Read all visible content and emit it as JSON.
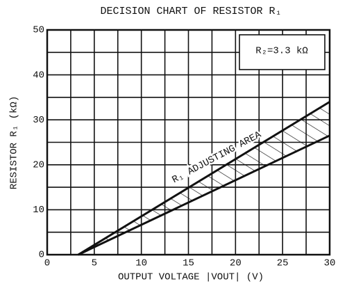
{
  "chart_data": {
    "type": "line",
    "title": "DECISION CHART OF RESISTOR R₁",
    "x_label": "OUTPUT VOLTAGE |VOUT| (V)",
    "y_label": "RESISTOR R₁ (kΩ)",
    "annotations": [
      "R₂=3.3 kΩ",
      "R₁ ADJUSTING AREA"
    ],
    "x": [
      3.3,
      30
    ],
    "series": [
      {
        "color": "#111111",
        "values": [
          0,
          34
        ]
      },
      {
        "color": "#111111",
        "values": [
          0,
          26.5
        ]
      }
    ],
    "xlim": [
      0,
      30
    ],
    "ylim": [
      0,
      50
    ],
    "xticks": [
      0,
      5,
      10,
      15,
      20,
      25,
      30
    ],
    "yticks": [
      0,
      10,
      20,
      30,
      40,
      50
    ],
    "grid": true
  }
}
